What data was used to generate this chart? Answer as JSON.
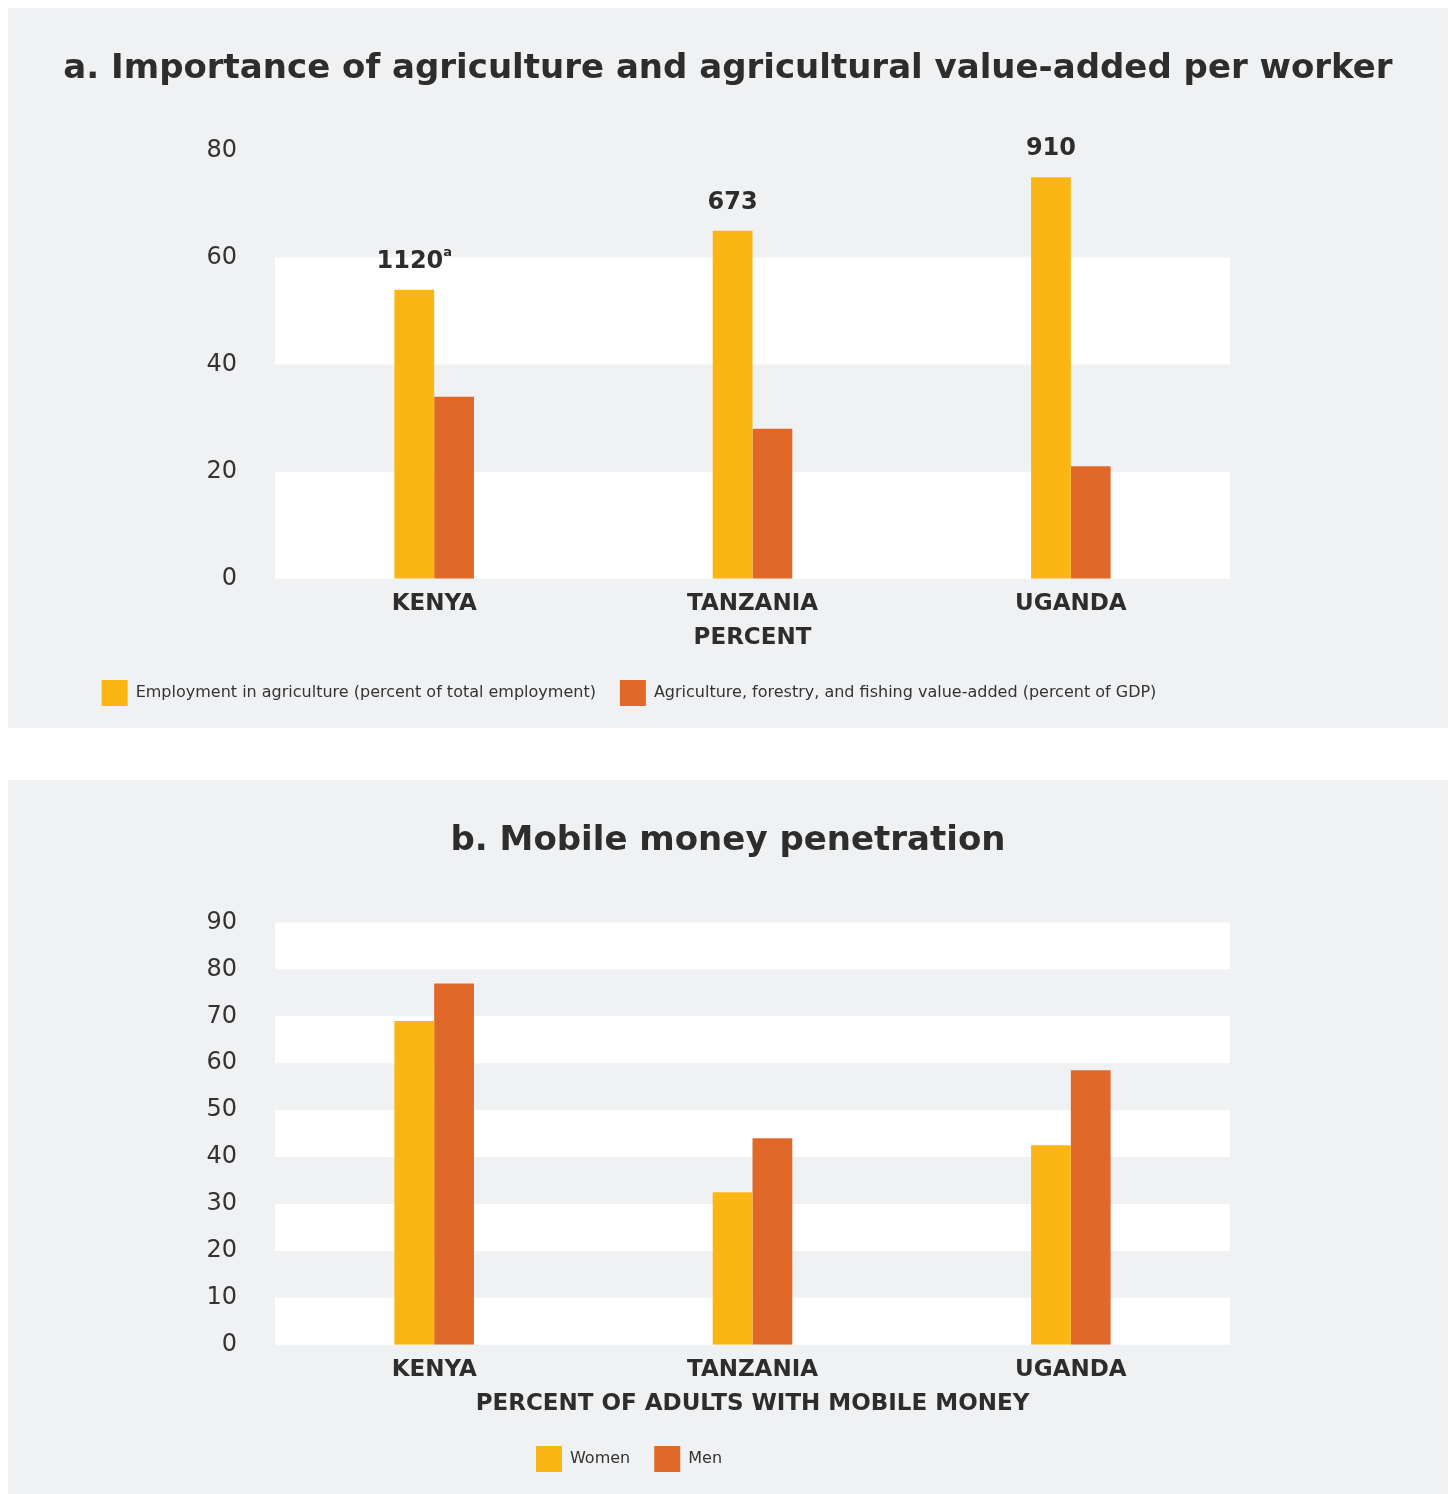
{
  "chart_data": [
    {
      "type": "bar",
      "title": "a. Importance of agriculture and agricultural value-added per worker",
      "xlabel": "PERCENT",
      "categories": [
        "KENYA",
        "TANZANIA",
        "UGANDA"
      ],
      "series": [
        {
          "name": "Employment in agriculture (percent of total employment)",
          "color": "#fbb616",
          "values": [
            54,
            65,
            75
          ]
        },
        {
          "name": "Agriculture, forestry, and fishing value-added (percent of GDP)",
          "color": "#e0692a",
          "values": [
            34,
            28,
            21
          ]
        }
      ],
      "ylim": [
        0,
        80
      ],
      "yticks": [
        0,
        20,
        40,
        60,
        80
      ],
      "legend": "bottom",
      "annotations": [
        {
          "text": "1120$^{a}$",
          "x": "KENYA",
          "y": 54
        },
        {
          "text": "673",
          "x": "TANZANIA",
          "y": 65
        },
        {
          "text": "910",
          "x": "UGANDA",
          "y": 75
        }
      ]
    },
    {
      "type": "bar",
      "title": "b. Mobile money penetration",
      "xlabel": "PERCENT OF ADULTS WITH MOBILE MONEY",
      "categories": [
        "KENYA",
        "TANZANIA",
        "UGANDA"
      ],
      "series": [
        {
          "name": "Women",
          "color": "#fbb616",
          "values": [
            69,
            32.5,
            42.5
          ]
        },
        {
          "name": "Men",
          "color": "#e0692a",
          "values": [
            77,
            44,
            58.5
          ]
        }
      ],
      "ylim": [
        0,
        90
      ],
      "yticks": [
        0,
        10,
        20,
        30,
        40,
        50,
        60,
        70,
        80,
        90
      ],
      "legend": "bottom"
    }
  ]
}
